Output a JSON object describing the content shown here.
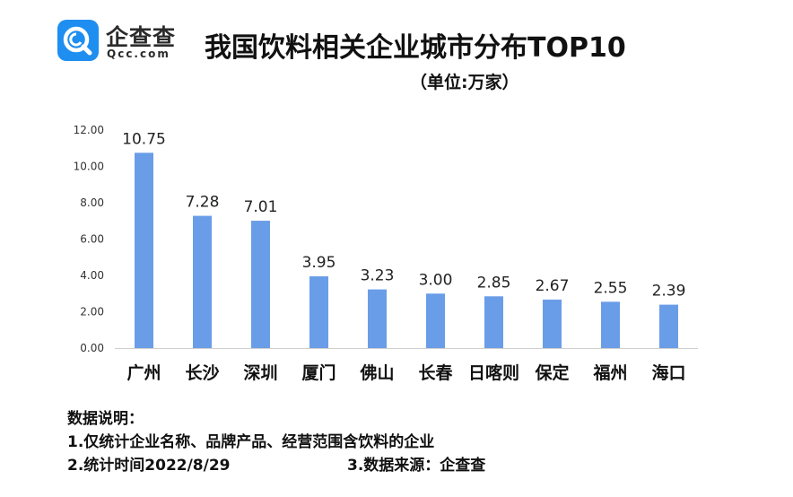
{
  "logo": {
    "name_cn": "企查查",
    "name_en": "Qcc.com"
  },
  "chart_title": "我国饮料相关企业城市分布TOP10",
  "chart_subtitle": "（单位:万家）",
  "colors": {
    "bar": "#6a9de8",
    "axis": "#d0d0d0",
    "logo": "#1e8ef0"
  },
  "chart_data": {
    "type": "bar",
    "title": "我国饮料相关企业城市分布TOP10",
    "subtitle": "（单位:万家）",
    "categories": [
      "广州",
      "长沙",
      "深圳",
      "厦门",
      "佛山",
      "长春",
      "日喀则",
      "保定",
      "福州",
      "海口"
    ],
    "values": [
      10.75,
      7.28,
      7.01,
      3.95,
      3.23,
      3.0,
      2.85,
      2.67,
      2.55,
      2.39
    ],
    "value_labels": [
      "10.75",
      "7.28",
      "7.01",
      "3.95",
      "3.23",
      "3.00",
      "2.85",
      "2.67",
      "2.55",
      "2.39"
    ],
    "yticks": [
      "0.00",
      "2.00",
      "4.00",
      "6.00",
      "8.00",
      "10.00",
      "12.00"
    ],
    "ylim": [
      0,
      12
    ],
    "xlabel": "",
    "ylabel": "",
    "grid": false,
    "legend": "none"
  },
  "notes": {
    "heading": "数据说明：",
    "line1": "1.仅统计企业名称、品牌产品、经营范围含饮料的企业",
    "line2a": "2.统计时间2022/8/29",
    "line2b": "3.数据来源：企查查"
  }
}
